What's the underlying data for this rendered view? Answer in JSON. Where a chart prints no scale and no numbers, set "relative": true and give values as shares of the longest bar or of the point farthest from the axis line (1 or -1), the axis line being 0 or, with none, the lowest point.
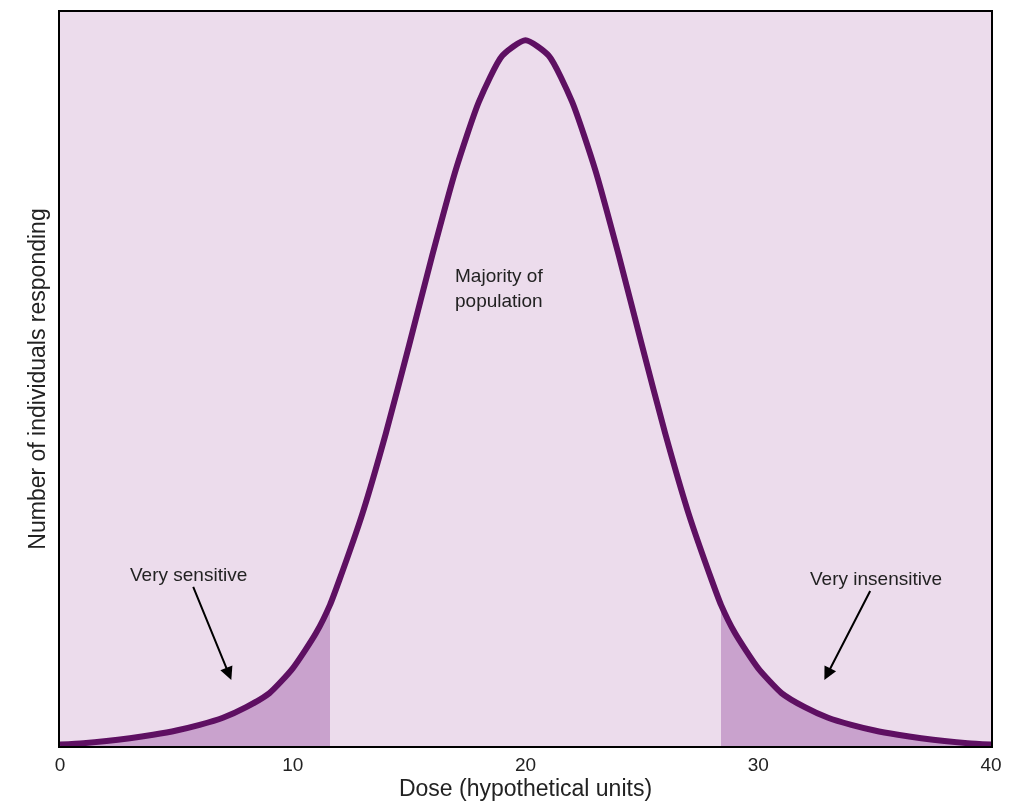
{
  "chart_data": {
    "type": "line",
    "relative": true,
    "xlabel": "Dose (hypothetical units)",
    "ylabel": "Number of individuals responding",
    "xlim": [
      0,
      40
    ],
    "xticks": [
      0,
      10,
      20,
      30,
      40
    ],
    "tick_labels": "x",
    "grid": false,
    "marker": "none",
    "line_style": "solid",
    "series": [
      {
        "color": "#5e1062",
        "x": [
          0,
          1,
          2,
          3,
          4,
          5,
          6,
          7,
          8,
          9,
          10,
          11,
          11.6,
          12,
          13,
          14,
          15,
          16,
          17,
          18,
          19,
          20,
          21,
          22,
          23,
          24,
          25,
          26,
          27,
          28,
          28.4,
          29,
          30,
          31,
          32,
          33,
          34,
          35,
          36,
          37,
          38,
          39,
          40
        ],
        "values": [
          0.002,
          0.004,
          0.007,
          0.011,
          0.016,
          0.022,
          0.03,
          0.04,
          0.055,
          0.075,
          0.11,
          0.16,
          0.2,
          0.235,
          0.33,
          0.443,
          0.568,
          0.696,
          0.816,
          0.913,
          0.978,
          1,
          0.978,
          0.913,
          0.816,
          0.696,
          0.568,
          0.443,
          0.33,
          0.235,
          0.2,
          0.16,
          0.11,
          0.075,
          0.055,
          0.04,
          0.03,
          0.022,
          0.016,
          0.011,
          0.007,
          0.004,
          0.002
        ]
      },
      {
        "type": "area",
        "color": "#c9a2cd",
        "x": [
          0,
          1,
          2,
          3,
          4,
          5,
          6,
          7,
          8,
          9,
          10,
          11,
          11.6
        ],
        "values": [
          0.002,
          0.004,
          0.007,
          0.011,
          0.016,
          0.022,
          0.03,
          0.04,
          0.055,
          0.075,
          0.11,
          0.16,
          0.2
        ]
      },
      {
        "type": "area",
        "color": "#c9a2cd",
        "x": [
          28.4,
          29,
          30,
          31,
          32,
          33,
          34,
          35,
          36,
          37,
          38,
          39,
          40
        ],
        "values": [
          0.2,
          0.16,
          0.11,
          0.075,
          0.055,
          0.04,
          0.03,
          0.022,
          0.016,
          0.011,
          0.007,
          0.004,
          0.002
        ]
      }
    ],
    "annotations": [
      "Majority of\npopulation",
      "Very sensitive",
      "Very insensitive"
    ]
  }
}
